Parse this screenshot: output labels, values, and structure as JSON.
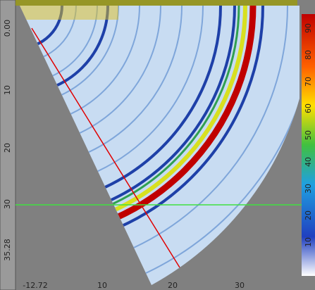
{
  "left_ruler": {
    "labels": [
      "0.00",
      "10",
      "20",
      "30",
      "35.28"
    ]
  },
  "right_scale": {
    "labels": [
      "90",
      "80",
      "70",
      "60",
      "50",
      "40",
      "30",
      "20",
      "10"
    ]
  },
  "bottom_ruler": {
    "labels": [
      "-12.72",
      "10",
      "20",
      "30"
    ]
  }
}
